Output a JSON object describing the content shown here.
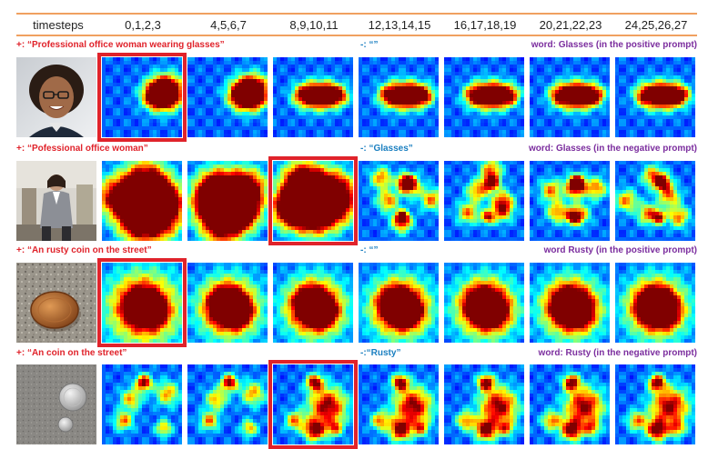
{
  "header": {
    "label": "timesteps",
    "groups": [
      "0,1,2,3",
      "4,5,6,7",
      "8,9,10,11",
      "12,13,14,15",
      "16,17,18,19",
      "20,21,22,23",
      "24,25,26,27"
    ]
  },
  "colors": {
    "positive": "#e0232b",
    "negative": "#1a7fc0",
    "word": "#7b2d9e",
    "rule": "#f0a060",
    "highlight": "#e0232b"
  },
  "rows": [
    {
      "positive": "+:  “Professional office woman wearing glasses”",
      "negative": "-:  “”",
      "word": "word: Glasses (in the positive prompt)",
      "photo": "woman-with-glasses",
      "highlighted_group": 0,
      "attention_focus": "eyes-band"
    },
    {
      "positive": "+:  “Pofessional office woman”",
      "negative": "-:  “Glasses”",
      "word": "word: Glasses (in the negative prompt)",
      "photo": "woman-in-office",
      "highlighted_group": 2,
      "attention_focus": "diffuse"
    },
    {
      "positive": "+:  “An rusty coin on the street”",
      "negative": "-:  “”",
      "word": "word Rusty (in the positive prompt)",
      "photo": "coin-on-street",
      "highlighted_group": 0,
      "attention_focus": "coin-blob"
    },
    {
      "positive": "+:  “An coin on the street”",
      "negative": "-:“Rusty”",
      "word": "word: Rusty (in the negative prompt)",
      "photo": "two-coins",
      "highlighted_group": 2,
      "attention_focus": "scattered"
    }
  ]
}
